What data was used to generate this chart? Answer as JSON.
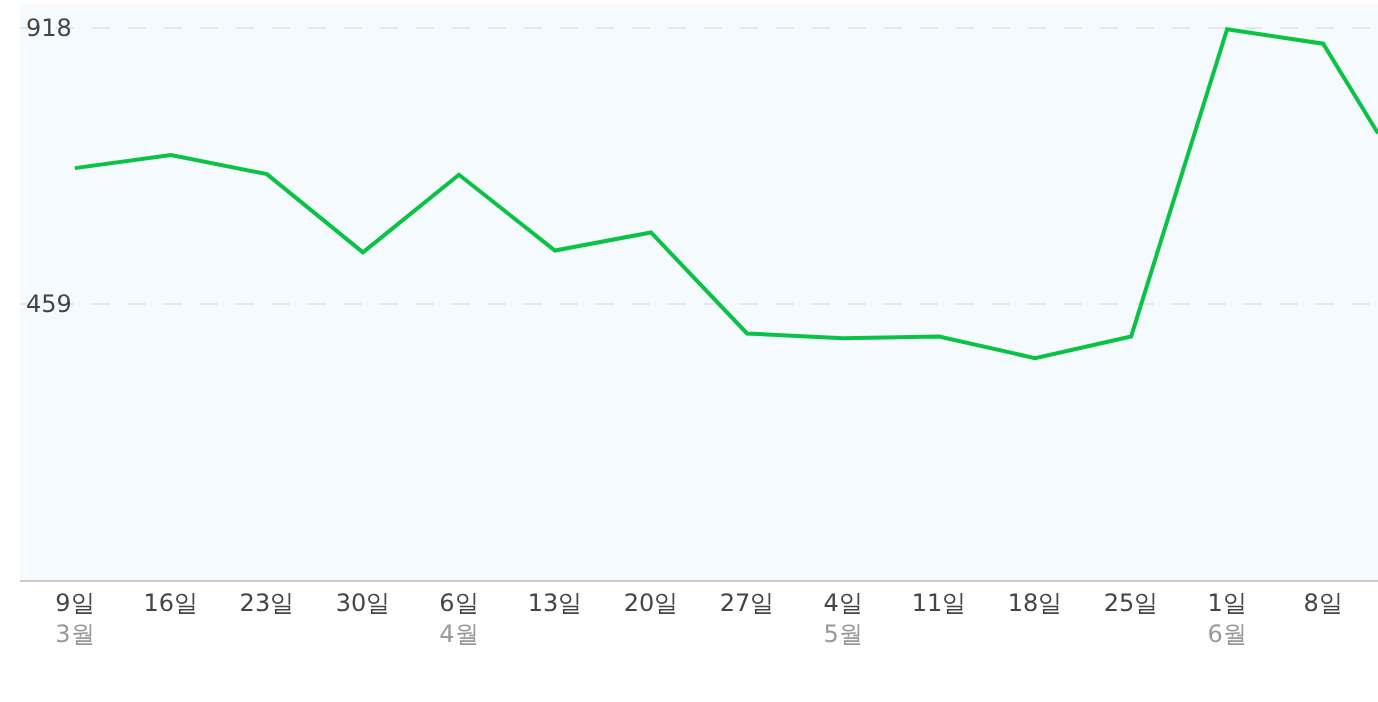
{
  "chart_data": {
    "type": "line",
    "x": [
      "--03-09",
      "--03-16",
      "--03-23",
      "--03-30",
      "--04-06",
      "--04-13",
      "--04-20",
      "--04-27",
      "--05-04",
      "--05-11",
      "--05-18",
      "--05-25",
      "--06-01",
      "--06-08",
      "--06-12"
    ],
    "series": [
      {
        "color": "#0ac244",
        "values": [
          685,
          707,
          675,
          545,
          674,
          548,
          578,
          410,
          402,
          405,
          369,
          405,
          916,
          892,
          743
        ]
      }
    ],
    "xlim": [
      "--03-05",
      "--06-12"
    ],
    "xticks": [
      {
        "value": "--03-09",
        "label": "9일\n3월"
      },
      {
        "value": "--03-16",
        "label": "16일"
      },
      {
        "value": "--03-23",
        "label": "23일"
      },
      {
        "value": "--03-30",
        "label": "30일"
      },
      {
        "value": "--04-06",
        "label": "6일\n4월"
      },
      {
        "value": "--04-13",
        "label": "13일"
      },
      {
        "value": "--04-20",
        "label": "20일"
      },
      {
        "value": "--04-27",
        "label": "27일"
      },
      {
        "value": "--05-04",
        "label": "4일\n5월"
      },
      {
        "value": "--05-11",
        "label": "11일"
      },
      {
        "value": "--05-18",
        "label": "18일"
      },
      {
        "value": "--05-25",
        "label": "25일"
      },
      {
        "value": "--06-01",
        "label": "1일\n6월"
      },
      {
        "value": "--06-08",
        "label": "8일"
      }
    ],
    "ylim": [
      0,
      958
    ],
    "yticks": [
      459,
      918
    ],
    "grid": "y",
    "marker": "none",
    "line_style": "solid"
  }
}
